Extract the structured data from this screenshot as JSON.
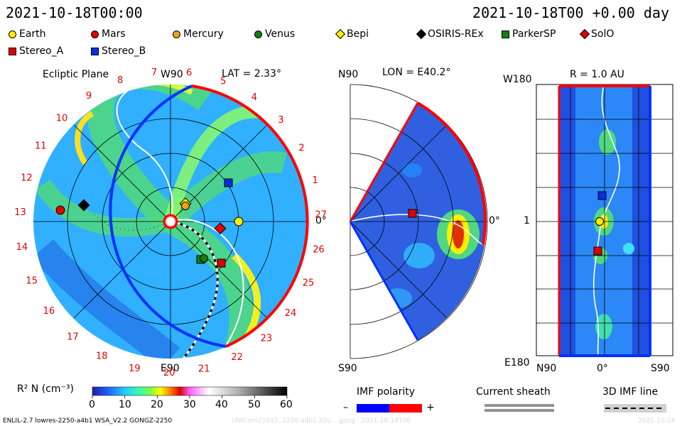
{
  "header": {
    "left_time": "2021-10-18T00:00",
    "right_time": "2021-10-18T00 +0.00 day"
  },
  "legend": {
    "items": [
      {
        "label": "Earth",
        "color": "#ffee00",
        "shape": "circle"
      },
      {
        "label": "Mars",
        "color": "#e00000",
        "shape": "circle"
      },
      {
        "label": "Mercury",
        "color": "#f0a020",
        "shape": "circle"
      },
      {
        "label": "Venus",
        "color": "#108010",
        "shape": "circle"
      },
      {
        "label": "Bepi",
        "color": "#ffee00",
        "shape": "diamond"
      },
      {
        "label": "OSIRIS-REx",
        "color": "#000000",
        "shape": "diamond"
      },
      {
        "label": "ParkerSP",
        "color": "#108010",
        "shape": "square"
      },
      {
        "label": "SolO",
        "color": "#e00000",
        "shape": "diamond"
      },
      {
        "label": "Stereo_A",
        "color": "#e00000",
        "shape": "square"
      },
      {
        "label": "Stereo_B",
        "color": "#0030e0",
        "shape": "square"
      }
    ]
  },
  "panel_ecliptic": {
    "title": "Ecliptic Plane",
    "lat": "LAT = 2.33°",
    "top_label": "W90",
    "bottom_label": "E90",
    "right_label": "0°",
    "carrington_labels": [
      "1",
      "2",
      "3",
      "4",
      "5",
      "6",
      "7",
      "8",
      "9",
      "10",
      "11",
      "12",
      "13",
      "14",
      "15",
      "16",
      "17",
      "18",
      "19",
      "20",
      "21",
      "22",
      "23",
      "24",
      "25",
      "26",
      "27"
    ]
  },
  "panel_meridional": {
    "title": "LON = E40.2°",
    "top_label": "N90",
    "bottom_label": "S90",
    "right_label": "0°"
  },
  "panel_radial": {
    "title": "R = 1.0 AU",
    "top_label": "W180",
    "bottom_label": "E180",
    "mid_label": "1",
    "x_labels": [
      "N90",
      "0°",
      "S90"
    ]
  },
  "colorbar": {
    "label": "R² N (cm⁻³)",
    "ticks": [
      "0",
      "10",
      "20",
      "30",
      "40",
      "50",
      "60"
    ]
  },
  "imf_polarity": {
    "title": "IMF polarity",
    "minus": "–",
    "plus": "+",
    "neg_color": "#0000ff",
    "pos_color": "#ff0000"
  },
  "current_sheath": {
    "title": "Current sheath"
  },
  "imf_line": {
    "title": "3D IMF line"
  },
  "footer": {
    "model": "ENLIL-2.7 lowres-2250-a4b1 WSA_V2.2 GONGZ-2250",
    "run": "UNICorn21015..2250 a4b1.22u ...gong...2021-10-18T00",
    "date": "2021-10-18"
  }
}
